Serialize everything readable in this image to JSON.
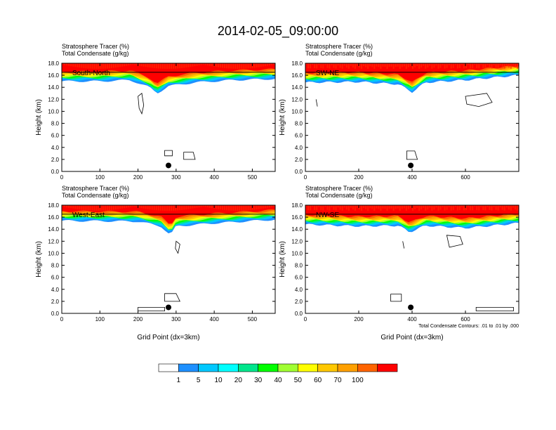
{
  "title": "2014-02-05_09:00:00",
  "shared": {
    "subtitle_line1": "Stratosphere Tracer   (%)",
    "subtitle_line2": "Total Condensate   (g/kg)",
    "ylabel": "Height (km)",
    "xlabel": "Grid Point (dx=3km)",
    "contour_note": "Total Condensate Contours: .01 to .01 by .000"
  },
  "colorbar": {
    "labels": [
      "1",
      "5",
      "10",
      "20",
      "30",
      "40",
      "50",
      "60",
      "70",
      "100"
    ],
    "colors": [
      "#ffffff",
      "#1e90ff",
      "#00c8ff",
      "#00ffff",
      "#00e68c",
      "#00ff00",
      "#a0ff32",
      "#ffff00",
      "#ffc800",
      "#ffa000",
      "#ff6400",
      "#ff0000"
    ]
  },
  "chart_data": [
    {
      "type": "heatmap",
      "panel_label": "South-North",
      "x_range": [
        0,
        560
      ],
      "ylim": [
        0,
        18
      ],
      "xticks": [
        0,
        100,
        200,
        300,
        400,
        500
      ],
      "yticks": [
        "0.0",
        "2.0",
        "4.0",
        "6.0",
        "8.0",
        "10.0",
        "12.0",
        "14.0",
        "16.0",
        "18.0"
      ],
      "tracer_bottom_km": [
        [
          0,
          15.0
        ],
        [
          100,
          15.0
        ],
        [
          180,
          15.2
        ],
        [
          230,
          14.0
        ],
        [
          250,
          13.0
        ],
        [
          280,
          14.2
        ],
        [
          350,
          14.8
        ],
        [
          450,
          15.2
        ],
        [
          560,
          15.4
        ]
      ],
      "marker": {
        "x": 280,
        "y_km": 1.0
      },
      "condensate_contours": [
        [
          [
            200,
            12.5
          ],
          [
            210,
            13.0
          ],
          [
            215,
            11.0
          ],
          [
            210,
            9.6
          ],
          [
            203,
            10.5
          ]
        ],
        [
          [
            270,
            3.5
          ],
          [
            290,
            3.5
          ],
          [
            290,
            2.6
          ],
          [
            270,
            2.6
          ]
        ],
        [
          [
            320,
            3.2
          ],
          [
            345,
            3.2
          ],
          [
            350,
            2.0
          ],
          [
            320,
            2.0
          ]
        ]
      ],
      "contour_note": false
    },
    {
      "type": "heatmap",
      "panel_label": "SW-NE",
      "x_range": [
        0,
        800
      ],
      "ylim": [
        0,
        18
      ],
      "xticks": [
        0,
        200,
        400,
        600
      ],
      "yticks": [
        "0.0",
        "2.0",
        "4.0",
        "6.0",
        "8.0",
        "10.0",
        "12.0",
        "14.0",
        "16.0",
        "18.0"
      ],
      "tracer_bottom_km": [
        [
          0,
          14.8
        ],
        [
          200,
          14.9
        ],
        [
          350,
          14.5
        ],
        [
          400,
          13.2
        ],
        [
          450,
          14.8
        ],
        [
          600,
          15.2
        ],
        [
          800,
          16.0
        ]
      ],
      "marker": {
        "x": 395,
        "y_km": 1.0
      },
      "condensate_contours": [
        [
          [
            600,
            12.5
          ],
          [
            680,
            13.0
          ],
          [
            700,
            11.5
          ],
          [
            650,
            10.8
          ],
          [
            605,
            11.2
          ]
        ],
        [
          [
            380,
            3.4
          ],
          [
            410,
            3.4
          ],
          [
            420,
            2.0
          ],
          [
            380,
            2.0
          ]
        ],
        [
          [
            40,
            12.0
          ],
          [
            45,
            10.8
          ]
        ]
      ],
      "contour_note": false
    },
    {
      "type": "heatmap",
      "panel_label": "West-East",
      "x_range": [
        0,
        560
      ],
      "ylim": [
        0,
        18
      ],
      "xticks": [
        0,
        100,
        200,
        300,
        400,
        500
      ],
      "yticks": [
        "0.0",
        "2.0",
        "4.0",
        "6.0",
        "8.0",
        "10.0",
        "12.0",
        "14.0",
        "16.0",
        "18.0"
      ],
      "tracer_bottom_km": [
        [
          0,
          15.4
        ],
        [
          200,
          15.3
        ],
        [
          260,
          14.5
        ],
        [
          285,
          13.0
        ],
        [
          300,
          14.5
        ],
        [
          400,
          15.0
        ],
        [
          560,
          15.6
        ]
      ],
      "marker": {
        "x": 280,
        "y_km": 1.0
      },
      "condensate_contours": [
        [
          [
            300,
            12.0
          ],
          [
            310,
            11.5
          ],
          [
            305,
            10.0
          ],
          [
            298,
            10.8
          ]
        ],
        [
          [
            270,
            3.3
          ],
          [
            300,
            3.3
          ],
          [
            310,
            2.0
          ],
          [
            270,
            2.0
          ]
        ],
        [
          [
            200,
            1.0
          ],
          [
            270,
            1.0
          ],
          [
            270,
            0.4
          ],
          [
            200,
            0.4
          ]
        ]
      ],
      "contour_note": false
    },
    {
      "type": "heatmap",
      "panel_label": "NW-SE",
      "x_range": [
        0,
        800
      ],
      "ylim": [
        0,
        18
      ],
      "xticks": [
        0,
        200,
        400,
        600
      ],
      "yticks": [
        "0.0",
        "2.0",
        "4.0",
        "6.0",
        "8.0",
        "10.0",
        "12.0",
        "14.0",
        "16.0",
        "18.0"
      ],
      "tracer_bottom_km": [
        [
          0,
          14.8
        ],
        [
          200,
          14.5
        ],
        [
          350,
          14.6
        ],
        [
          390,
          13.5
        ],
        [
          450,
          14.6
        ],
        [
          600,
          14.2
        ],
        [
          800,
          15.0
        ]
      ],
      "marker": {
        "x": 395,
        "y_km": 1.0
      },
      "condensate_contours": [
        [
          [
            530,
            13.0
          ],
          [
            580,
            12.8
          ],
          [
            590,
            11.5
          ],
          [
            540,
            11.0
          ]
        ],
        [
          [
            640,
            1.0
          ],
          [
            780,
            1.0
          ],
          [
            780,
            0.4
          ],
          [
            640,
            0.4
          ]
        ],
        [
          [
            320,
            3.2
          ],
          [
            360,
            3.2
          ],
          [
            360,
            2.0
          ],
          [
            320,
            2.0
          ]
        ],
        [
          [
            365,
            12.0
          ],
          [
            370,
            10.8
          ]
        ]
      ],
      "contour_note": true
    }
  ]
}
